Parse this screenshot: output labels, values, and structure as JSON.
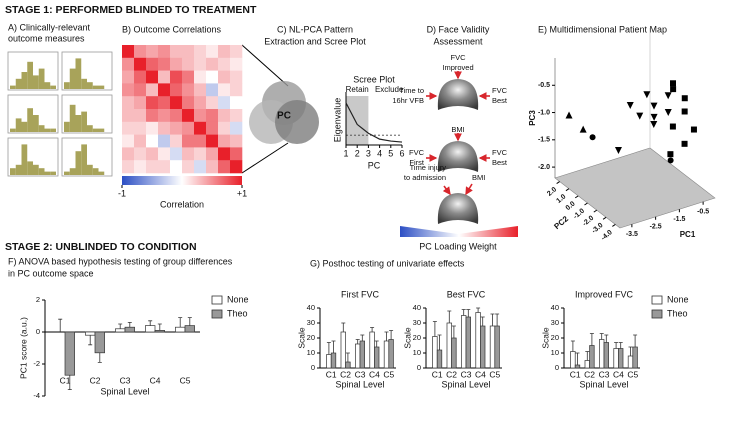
{
  "stages": [
    "STAGE 1: PERFORMED BLINDED TO TREATMENT",
    "STAGE 2: UNBLINDED TO CONDITION"
  ],
  "panel_d": {
    "title": [
      "D) Face Validity",
      "Assessment"
    ],
    "groups": [
      {
        "labels": [
          {
            "side": "top",
            "text": [
              "FVC",
              "Improved"
            ]
          },
          {
            "side": "left",
            "text": [
              "Time to",
              "16hr VFB"
            ]
          },
          {
            "side": "right",
            "text": [
              "FVC",
              "Best"
            ]
          }
        ]
      },
      {
        "labels": [
          {
            "side": "top",
            "text": [
              "BMI"
            ]
          },
          {
            "side": "left",
            "text": [
              "FVC",
              "First"
            ]
          },
          {
            "side": "right",
            "text": [
              "FVC",
              "Best"
            ]
          }
        ]
      },
      {
        "labels": [
          {
            "side": "top-left",
            "text": [
              "Time injury",
              "to admission"
            ]
          },
          {
            "side": "top-right",
            "text": [
              "BMI"
            ]
          }
        ]
      }
    ],
    "colorbar_label": "PC Loading Weight"
  },
  "panel_g_title": "G) Posthoc testing of univariate effects",
  "chart_data": [
    {
      "type": "histogram",
      "title": [
        "A) Clinically-relevant",
        "outcome measures"
      ],
      "color": "#a8a35a",
      "bins": [
        0,
        1,
        2,
        3,
        4,
        5,
        6,
        7,
        8
      ],
      "ylim": [
        0,
        10
      ],
      "series": [
        {
          "values": [
            1,
            3,
            5,
            8,
            4,
            6,
            2,
            1
          ]
        },
        {
          "values": [
            2,
            6,
            9,
            3,
            2,
            1,
            1,
            0
          ]
        },
        {
          "values": [
            1,
            4,
            3,
            7,
            5,
            2,
            1,
            1
          ]
        },
        {
          "values": [
            3,
            8,
            5,
            6,
            2,
            1,
            1,
            0
          ]
        },
        {
          "values": [
            2,
            3,
            9,
            4,
            3,
            2,
            1,
            1
          ]
        },
        {
          "values": [
            1,
            2,
            7,
            9,
            3,
            2,
            1,
            0
          ]
        }
      ]
    },
    {
      "type": "heatmap",
      "title": "B) Outcome Correlations",
      "zlim": [
        -1,
        1
      ],
      "colorbar_ticks": [
        -1,
        {
          "value": 1,
          "label": "+1"
        }
      ],
      "colorbar_label": "Correlation",
      "values": [
        [
          1,
          0.5,
          0.4,
          0.5,
          0.3,
          0.3,
          0.2,
          0.1,
          0.3,
          0.2
        ],
        [
          0.5,
          1,
          0.7,
          0.6,
          0.4,
          0.3,
          0.2,
          0.3,
          0.2,
          0.1
        ],
        [
          0.4,
          0.7,
          1,
          0.3,
          0.8,
          0.6,
          0.1,
          0,
          0.3,
          0.2
        ],
        [
          0.5,
          0.6,
          0.3,
          1,
          0.7,
          0.5,
          0.3,
          -0.3,
          0.1,
          0.2
        ],
        [
          0.3,
          0.4,
          0.8,
          0.7,
          1,
          0.6,
          0.4,
          0.2,
          -0.2,
          0
        ],
        [
          0.3,
          0.3,
          0.6,
          0.5,
          0.6,
          1,
          0.5,
          0.6,
          0.3,
          0.2
        ],
        [
          0.2,
          0.2,
          0.1,
          0.3,
          0.4,
          0.5,
          1,
          0.6,
          0.2,
          -0.2
        ],
        [
          0.1,
          0.3,
          0,
          -0.3,
          0.2,
          0.6,
          0.6,
          1,
          0.4,
          0.3
        ],
        [
          0.3,
          0.2,
          0.3,
          0.1,
          -0.2,
          0.3,
          0.2,
          0.4,
          1,
          0.7
        ],
        [
          0.2,
          0.1,
          0.2,
          0.2,
          0,
          0.2,
          -0.2,
          0.3,
          0.7,
          1
        ]
      ]
    },
    {
      "type": "line",
      "title": [
        "C) NL-PCA Pattern",
        "Extraction and Scree Plot"
      ],
      "center_label": "PC",
      "subtitle": "Scree Plot",
      "annotations": [
        "Retain",
        "Exclude"
      ],
      "retain_range": [
        1,
        3
      ],
      "threshold": 1,
      "x": [
        1,
        2,
        3,
        4,
        5,
        6
      ],
      "values": [
        4.3,
        2.1,
        1.2,
        0.6,
        0.4,
        0.3
      ],
      "color": "#222",
      "xlim": [
        1,
        6
      ],
      "ylim": [
        0,
        5
      ],
      "xticks": [
        1,
        2,
        3,
        4,
        5,
        6
      ],
      "xlabel": "PC",
      "ylabel": "Eigenvalue"
    },
    {
      "type": "scatter3d",
      "title": "E) Multidimensional Patient Map",
      "xlabel": "PC1",
      "ylabel": "PC2",
      "zlabel": "PC3",
      "xlim": [
        -4,
        0
      ],
      "ylim": [
        -4.5,
        2.5
      ],
      "zlim": [
        -2.2,
        0
      ],
      "xticks": [
        -3.5,
        -2.5,
        -1.5,
        -0.5
      ],
      "yticks": [
        {
          "value": 2,
          "label": "2.0"
        },
        {
          "value": 1,
          "label": "1.0"
        },
        {
          "value": 0,
          "label": "0.0"
        },
        {
          "value": -1,
          "label": "-1.0"
        },
        {
          "value": -2,
          "label": "-2.0"
        },
        {
          "value": -3,
          "label": "-3.0"
        },
        {
          "value": -4,
          "label": "-4.0"
        }
      ],
      "zticks": [
        -0.5,
        {
          "value": -1,
          "label": "-1.0"
        },
        -1.5,
        {
          "value": -2,
          "label": "-2.0"
        }
      ],
      "series": [
        {
          "marker": "triangle",
          "color": "#000",
          "x": [
            -3.8,
            -3.4
          ],
          "y": [
            1.5,
            1
          ],
          "z": [
            -0.95,
            -1.2
          ]
        },
        {
          "marker": "circle",
          "color": "#000",
          "x": [
            -3.2,
            -0.5
          ],
          "y": [
            0.5,
            -1
          ],
          "z": [
            -1.3,
            -1.9
          ]
        },
        {
          "marker": "triangle-down",
          "color": "#000",
          "x": [
            -2.2,
            -1.8,
            -1.5,
            -1.2,
            -1,
            -0.8,
            -2.5,
            -1.6,
            -0.6
          ],
          "y": [
            -1,
            -1,
            -1,
            -1,
            -0.5,
            -1.5,
            -0.5,
            -2,
            -1
          ],
          "z": [
            -0.65,
            -0.9,
            -0.55,
            -0.8,
            -1.1,
            -0.6,
            -1.5,
            -0.95,
            -1
          ]
        },
        {
          "marker": "square",
          "color": "#000",
          "x": [
            -0.4,
            -0.3,
            -0.6,
            -0.2,
            -0.5,
            -0.1,
            -0.9,
            -0.3
          ],
          "y": [
            -1,
            -2,
            -1.5,
            -0.5,
            -2.5,
            -1.5,
            -2,
            -3
          ],
          "z": [
            -0.5,
            -0.9,
            -1.2,
            -0.7,
            -1.4,
            -0.75,
            -1.6,
            -1.1
          ]
        }
      ]
    },
    {
      "type": "bar",
      "title": [
        "F) ANOVA based hypothesis testing of group differences",
        "in PC outcome space"
      ],
      "categories": [
        "C1",
        "C2",
        "C3",
        "C4",
        "C5"
      ],
      "ylim": [
        -4,
        2
      ],
      "yticks": [
        -4,
        -2,
        0,
        2
      ],
      "ylabel": "PC1 score (a.u.)",
      "xlabel": "Spinal Level",
      "legend": "upper right",
      "series": [
        {
          "name": "None",
          "color": "#ffffff",
          "values": [
            0,
            -0.2,
            0.2,
            0.4,
            0.3
          ],
          "errors": [
            0.8,
            0.6,
            0.3,
            0.3,
            0.6
          ]
        },
        {
          "name": "Theo",
          "color": "#999999",
          "values": [
            -2.7,
            -1.3,
            0.3,
            0.1,
            0.4
          ],
          "errors": [
            0.9,
            0.6,
            0.3,
            0.4,
            0.5
          ]
        }
      ]
    },
    {
      "type": "bar",
      "title": "First FVC",
      "categories": [
        "C1",
        "C2",
        "C3",
        "C4",
        "C5"
      ],
      "ylim": [
        0,
        40
      ],
      "yticks": [
        0,
        10,
        20,
        30,
        40
      ],
      "ylabel": "Scale",
      "xlabel": "Spinal Level",
      "series": [
        {
          "color": "#ffffff",
          "values": [
            9,
            24,
            16,
            24,
            18
          ],
          "errors": [
            8,
            6,
            3,
            3,
            6
          ]
        },
        {
          "color": "#999999",
          "values": [
            10,
            4,
            18,
            14,
            19
          ],
          "errors": [
            8,
            6,
            4,
            4,
            6
          ]
        }
      ]
    },
    {
      "type": "bar",
      "title": "Best FVC",
      "categories": [
        "C1",
        "C2",
        "C3",
        "C4",
        "C5"
      ],
      "ylim": [
        0,
        40
      ],
      "yticks": [
        0,
        10,
        20,
        30,
        40
      ],
      "ylabel": "Scale",
      "xlabel": "Spinal Level",
      "series": [
        {
          "color": "#ffffff",
          "values": [
            21,
            30,
            35,
            37,
            28
          ],
          "errors": [
            10,
            8,
            4,
            3,
            8
          ]
        },
        {
          "color": "#999999",
          "values": [
            12,
            20,
            34,
            28,
            28
          ],
          "errors": [
            10,
            8,
            5,
            6,
            8
          ]
        }
      ]
    },
    {
      "type": "bar",
      "title": "Improved FVC",
      "categories": [
        "C1",
        "C2",
        "C3",
        "C4",
        "C5"
      ],
      "ylim": [
        0,
        40
      ],
      "yticks": [
        0,
        10,
        20,
        30,
        40
      ],
      "ylabel": "Scale",
      "xlabel": "Spinal Level",
      "legend": "right",
      "series": [
        {
          "name": "None",
          "color": "#ffffff",
          "values": [
            11,
            5,
            19,
            13,
            8
          ],
          "errors": [
            7,
            6,
            4,
            4,
            6
          ]
        },
        {
          "name": "Theo",
          "color": "#999999",
          "values": [
            2,
            15,
            17,
            13,
            14
          ],
          "errors": [
            8,
            8,
            5,
            4,
            8
          ]
        }
      ]
    }
  ]
}
